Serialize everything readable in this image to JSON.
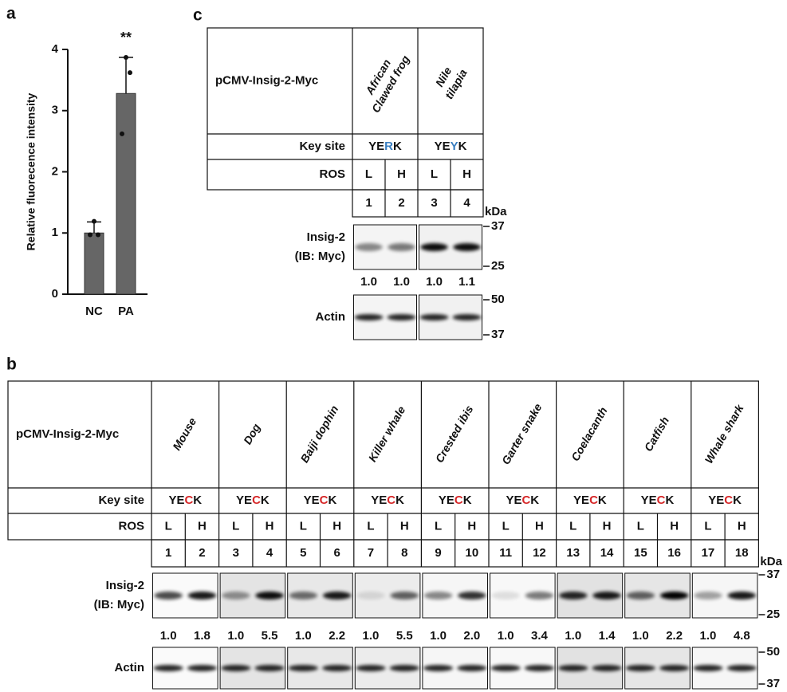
{
  "panel_labels": [
    "a",
    "b",
    "c"
  ],
  "chart_data": {
    "type": "bar",
    "ylabel": "Relative fluorecence intensity",
    "categories": [
      "NC",
      "PA"
    ],
    "values": [
      1.0,
      3.28
    ],
    "errors": [
      0.18,
      0.59
    ],
    "points": [
      [
        1.19,
        0.97,
        0.97
      ],
      [
        3.87,
        3.62,
        2.62
      ]
    ],
    "color": "#666666",
    "ylim": [
      0,
      4
    ],
    "yticks": [
      0,
      1,
      2,
      3,
      4
    ],
    "annotation": "**"
  },
  "panel_b": {
    "construct": "pCMV-Insig-2-Myc",
    "key_site_label": "Key site",
    "ros_label": "ROS",
    "highlight_color": "#d62728",
    "kda_label": "kDa",
    "markers": [
      37,
      25,
      50,
      37
    ],
    "blot_labels": [
      "Insig-2",
      "(IB: Myc)"
    ],
    "actin_label": "Actin",
    "species": [
      {
        "name_lines": [
          "Mouse"
        ],
        "key_site": [
          "YE",
          "C",
          "K"
        ],
        "ros": [
          "L",
          "H"
        ],
        "lanes": [
          1,
          2
        ],
        "ratios": [
          "1.0",
          "1.8"
        ]
      },
      {
        "name_lines": [
          "Dog"
        ],
        "key_site": [
          "YE",
          "C",
          "K"
        ],
        "ros": [
          "L",
          "H"
        ],
        "lanes": [
          3,
          4
        ],
        "ratios": [
          "1.0",
          "5.5"
        ]
      },
      {
        "name_lines": [
          "Baiji dophin"
        ],
        "key_site": [
          "YE",
          "C",
          "K"
        ],
        "ros": [
          "L",
          "H"
        ],
        "lanes": [
          5,
          6
        ],
        "ratios": [
          "1.0",
          "2.2"
        ]
      },
      {
        "name_lines": [
          "Killer whale"
        ],
        "key_site": [
          "YE",
          "C",
          "K"
        ],
        "ros": [
          "L",
          "H"
        ],
        "lanes": [
          7,
          8
        ],
        "ratios": [
          "1.0",
          "5.5"
        ]
      },
      {
        "name_lines": [
          "Crested ibis"
        ],
        "key_site": [
          "YE",
          "C",
          "K"
        ],
        "ros": [
          "L",
          "H"
        ],
        "lanes": [
          9,
          10
        ],
        "ratios": [
          "1.0",
          "2.0"
        ]
      },
      {
        "name_lines": [
          "Garter snake"
        ],
        "key_site": [
          "YE",
          "C",
          "K"
        ],
        "ros": [
          "L",
          "H"
        ],
        "lanes": [
          11,
          12
        ],
        "ratios": [
          "1.0",
          "3.4"
        ]
      },
      {
        "name_lines": [
          "Coelacanth"
        ],
        "key_site": [
          "YE",
          "C",
          "K"
        ],
        "ros": [
          "L",
          "H"
        ],
        "lanes": [
          13,
          14
        ],
        "ratios": [
          "1.0",
          "1.4"
        ]
      },
      {
        "name_lines": [
          "Catfish"
        ],
        "key_site": [
          "YE",
          "C",
          "K"
        ],
        "ros": [
          "L",
          "H"
        ],
        "lanes": [
          15,
          16
        ],
        "ratios": [
          "1.0",
          "2.2"
        ]
      },
      {
        "name_lines": [
          "Whale shark"
        ],
        "key_site": [
          "YE",
          "C",
          "K"
        ],
        "ros": [
          "L",
          "H"
        ],
        "lanes": [
          17,
          18
        ],
        "ratios": [
          "1.0",
          "4.8"
        ]
      }
    ]
  },
  "panel_c": {
    "construct": "pCMV-Insig-2-Myc",
    "key_site_label": "Key site",
    "ros_label": "ROS",
    "highlight_color": "#3a7fc1",
    "kda_label": "kDa",
    "markers": [
      37,
      25,
      50,
      37
    ],
    "blot_labels": [
      "Insig-2",
      "(IB: Myc)"
    ],
    "actin_label": "Actin",
    "species": [
      {
        "name_lines": [
          "African",
          "Clawed frog"
        ],
        "key_site": [
          "YE",
          "R",
          "K"
        ],
        "ros": [
          "L",
          "H"
        ],
        "lanes": [
          1,
          2
        ],
        "ratios": [
          "1.0",
          "1.0"
        ]
      },
      {
        "name_lines": [
          "Nile",
          "tilapia"
        ],
        "key_site": [
          "YE",
          "Y",
          "K"
        ],
        "ros": [
          "L",
          "H"
        ],
        "lanes": [
          3,
          4
        ],
        "ratios": [
          "1.0",
          "1.1"
        ]
      }
    ]
  }
}
